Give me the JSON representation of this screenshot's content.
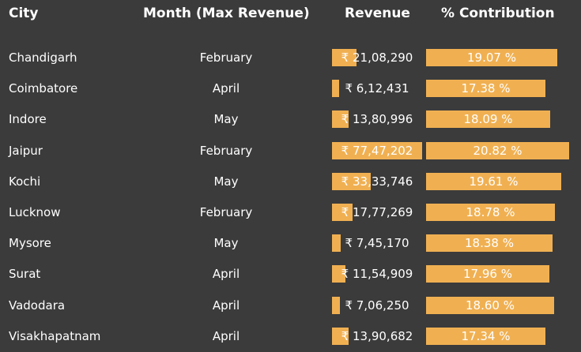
{
  "headers": {
    "city": "City",
    "month": "Month (Max Revenue)",
    "revenue": "Revenue",
    "contribution": "% Contribution"
  },
  "colors": {
    "bar": "#f0b052",
    "background": "#3b3b3b"
  },
  "rows": [
    {
      "city": "Chandigarh",
      "month": "February",
      "revenue": "₹ 21,08,290",
      "revenue_fraction": 0.27,
      "contribution": "19.07 %",
      "contribution_fraction": 0.916
    },
    {
      "city": "Coimbatore",
      "month": "April",
      "revenue": "₹ 6,12,431",
      "revenue_fraction": 0.08,
      "contribution": "17.38 %",
      "contribution_fraction": 0.835
    },
    {
      "city": "Indore",
      "month": "May",
      "revenue": "₹ 13,80,996",
      "revenue_fraction": 0.18,
      "contribution": "18.09 %",
      "contribution_fraction": 0.869
    },
    {
      "city": "Jaipur",
      "month": "February",
      "revenue": "₹ 77,47,202",
      "revenue_fraction": 1.0,
      "contribution": "20.82 %",
      "contribution_fraction": 1.0
    },
    {
      "city": "Kochi",
      "month": "May",
      "revenue": "₹ 33,33,746",
      "revenue_fraction": 0.43,
      "contribution": "19.61 %",
      "contribution_fraction": 0.942
    },
    {
      "city": "Lucknow",
      "month": "February",
      "revenue": "₹ 17,77,269",
      "revenue_fraction": 0.23,
      "contribution": "18.78 %",
      "contribution_fraction": 0.902
    },
    {
      "city": "Mysore",
      "month": "May",
      "revenue": "₹ 7,45,170",
      "revenue_fraction": 0.1,
      "contribution": "18.38 %",
      "contribution_fraction": 0.883
    },
    {
      "city": "Surat",
      "month": "April",
      "revenue": "₹ 11,54,909",
      "revenue_fraction": 0.15,
      "contribution": "17.96 %",
      "contribution_fraction": 0.863
    },
    {
      "city": "Vadodara",
      "month": "April",
      "revenue": "₹ 7,06,250",
      "revenue_fraction": 0.09,
      "contribution": "18.60 %",
      "contribution_fraction": 0.893
    },
    {
      "city": "Visakhapatnam",
      "month": "April",
      "revenue": "₹ 13,90,682",
      "revenue_fraction": 0.18,
      "contribution": "17.34 %",
      "contribution_fraction": 0.833
    }
  ]
}
